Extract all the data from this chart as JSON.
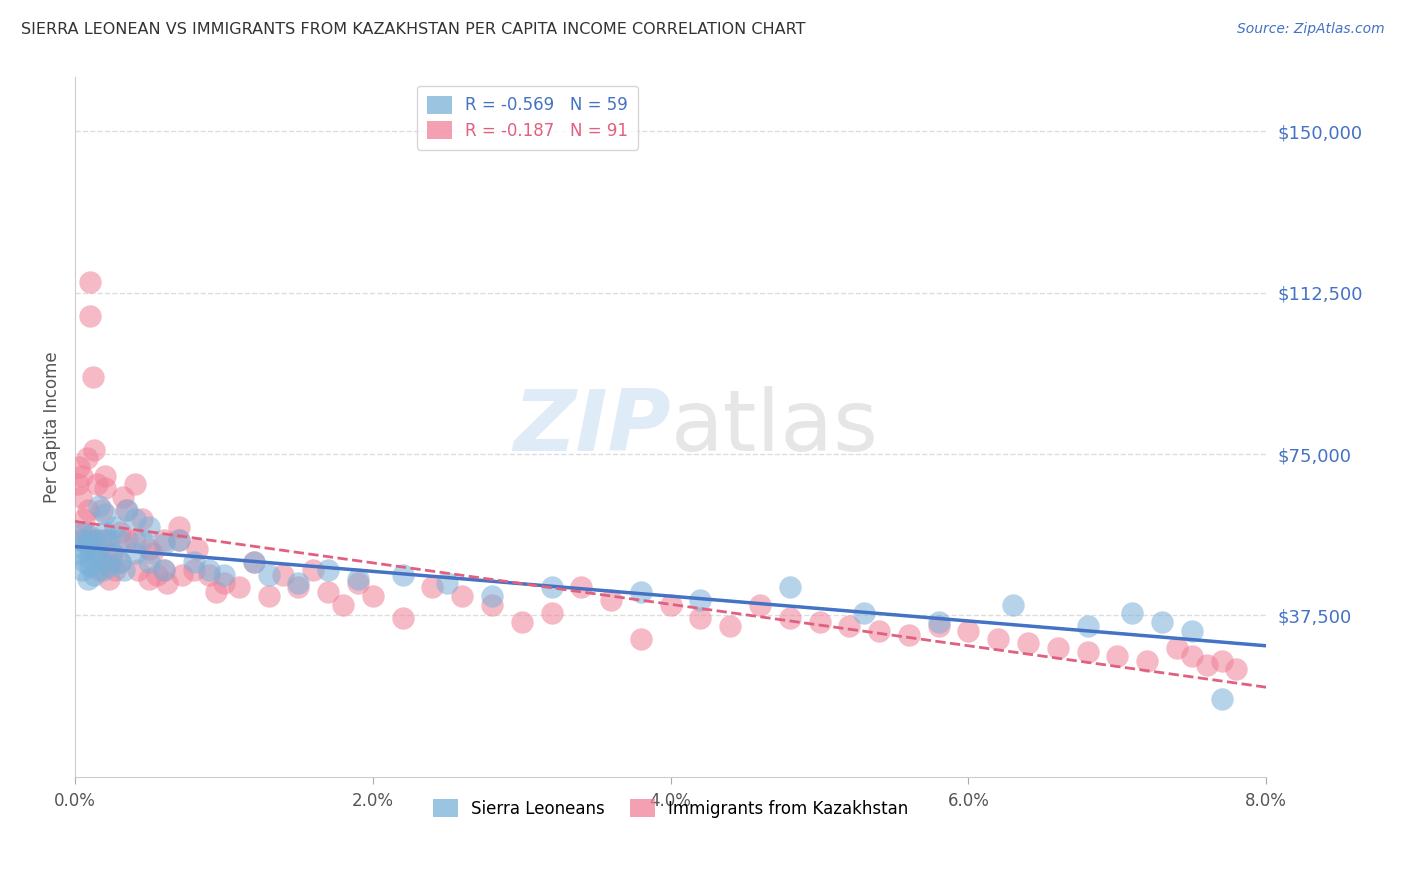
{
  "title": "SIERRA LEONEAN VS IMMIGRANTS FROM KAZAKHSTAN PER CAPITA INCOME CORRELATION CHART",
  "source": "Source: ZipAtlas.com",
  "ylabel": "Per Capita Income",
  "ytick_labels": [
    "$150,000",
    "$112,500",
    "$75,000",
    "$37,500"
  ],
  "ytick_values": [
    150000,
    112500,
    75000,
    37500
  ],
  "ylim": [
    0,
    162500
  ],
  "xlim": [
    0.0,
    0.08
  ],
  "legend_entries": [
    {
      "label": "R = -0.569   N = 59"
    },
    {
      "label": "R = -0.187   N = 91"
    }
  ],
  "legend_labels": [
    "Sierra Leoneans",
    "Immigrants from Kazakhstan"
  ],
  "watermark": "ZIPatlas",
  "blue_color": "#7ab0d8",
  "pink_color": "#f08098",
  "blue_line_color": "#4472c4",
  "pink_line_color": "#e06080",
  "title_color": "#333333",
  "axis_label_color": "#555555",
  "ytick_color": "#4472c4",
  "xtick_color": "#555555",
  "grid_color": "#dddddd",
  "background_color": "#ffffff",
  "blue_scatter_x": [
    0.0003,
    0.0004,
    0.0005,
    0.0005,
    0.0006,
    0.0007,
    0.0008,
    0.0009,
    0.001,
    0.001,
    0.001,
    0.0012,
    0.0013,
    0.0014,
    0.0015,
    0.0016,
    0.0018,
    0.0019,
    0.002,
    0.002,
    0.0022,
    0.0023,
    0.0025,
    0.0027,
    0.003,
    0.003,
    0.0033,
    0.0035,
    0.004,
    0.004,
    0.0045,
    0.005,
    0.005,
    0.006,
    0.006,
    0.007,
    0.008,
    0.009,
    0.01,
    0.012,
    0.013,
    0.015,
    0.017,
    0.019,
    0.022,
    0.025,
    0.028,
    0.032,
    0.038,
    0.042,
    0.048,
    0.053,
    0.058,
    0.063,
    0.068,
    0.071,
    0.073,
    0.075,
    0.077
  ],
  "blue_scatter_y": [
    52000,
    55000,
    48000,
    57000,
    53000,
    50000,
    54000,
    46000,
    51000,
    56000,
    49000,
    53000,
    47000,
    55000,
    52000,
    63000,
    50000,
    48000,
    57000,
    61000,
    55000,
    49000,
    52000,
    58000,
    50000,
    55000,
    48000,
    62000,
    52000,
    60000,
    55000,
    50000,
    58000,
    54000,
    48000,
    55000,
    50000,
    48000,
    47000,
    50000,
    47000,
    45000,
    48000,
    46000,
    47000,
    45000,
    42000,
    44000,
    43000,
    41000,
    44000,
    38000,
    36000,
    40000,
    35000,
    38000,
    36000,
    34000,
    18000
  ],
  "pink_scatter_x": [
    0.0002,
    0.0003,
    0.0004,
    0.0005,
    0.0005,
    0.0006,
    0.0007,
    0.0008,
    0.0009,
    0.001,
    0.001,
    0.001,
    0.0012,
    0.0013,
    0.0014,
    0.0015,
    0.0016,
    0.0017,
    0.0018,
    0.002,
    0.002,
    0.002,
    0.0022,
    0.0023,
    0.0025,
    0.0027,
    0.003,
    0.003,
    0.0032,
    0.0034,
    0.0035,
    0.004,
    0.004,
    0.0042,
    0.0045,
    0.005,
    0.005,
    0.0052,
    0.0055,
    0.006,
    0.006,
    0.0062,
    0.007,
    0.007,
    0.0072,
    0.008,
    0.0082,
    0.009,
    0.0095,
    0.01,
    0.011,
    0.012,
    0.013,
    0.014,
    0.015,
    0.016,
    0.017,
    0.018,
    0.019,
    0.02,
    0.022,
    0.024,
    0.026,
    0.028,
    0.03,
    0.032,
    0.034,
    0.036,
    0.038,
    0.04,
    0.042,
    0.044,
    0.046,
    0.048,
    0.05,
    0.052,
    0.054,
    0.056,
    0.058,
    0.06,
    0.062,
    0.064,
    0.066,
    0.068,
    0.07,
    0.072,
    0.074,
    0.075,
    0.076,
    0.077,
    0.078
  ],
  "pink_scatter_y": [
    68000,
    72000,
    65000,
    55000,
    70000,
    60000,
    57000,
    74000,
    62000,
    115000,
    107000,
    55000,
    93000,
    76000,
    52000,
    68000,
    48000,
    55000,
    62000,
    67000,
    70000,
    55000,
    50000,
    46000,
    52000,
    48000,
    57000,
    50000,
    65000,
    62000,
    55000,
    68000,
    55000,
    48000,
    60000,
    53000,
    46000,
    52000,
    47000,
    55000,
    48000,
    45000,
    58000,
    55000,
    47000,
    48000,
    53000,
    47000,
    43000,
    45000,
    44000,
    50000,
    42000,
    47000,
    44000,
    48000,
    43000,
    40000,
    45000,
    42000,
    37000,
    44000,
    42000,
    40000,
    36000,
    38000,
    44000,
    41000,
    32000,
    40000,
    37000,
    35000,
    40000,
    37000,
    36000,
    35000,
    34000,
    33000,
    35000,
    34000,
    32000,
    31000,
    30000,
    29000,
    28000,
    27000,
    30000,
    28000,
    26000,
    27000,
    25000
  ]
}
